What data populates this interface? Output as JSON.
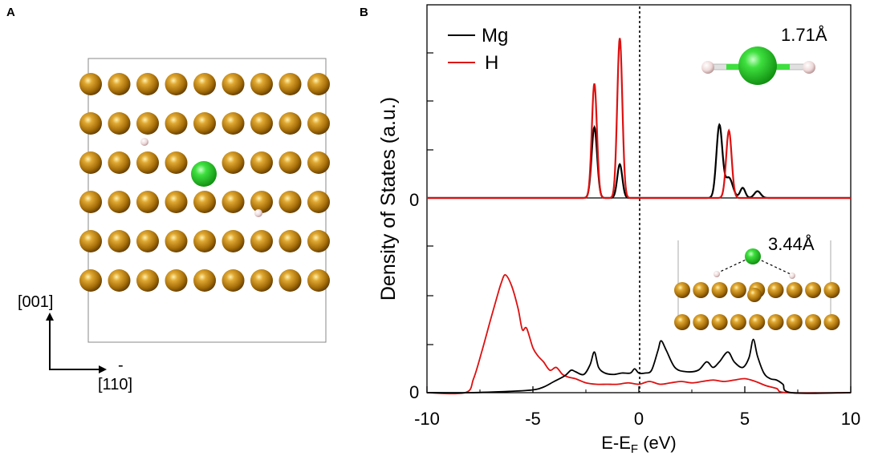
{
  "panels": {
    "a_label": "A",
    "b_label": "B"
  },
  "panel_a": {
    "axis_vertical": "[001]",
    "axis_horizontal": "[110]",
    "axis_horizontal_overbar": "-",
    "lattice": {
      "rows": 6,
      "cols": 9,
      "atom_color": "#b07b10",
      "center_atom_color": "#22cc22",
      "h_atom_color": "#f0d8d8"
    }
  },
  "chart_data": {
    "type": "line",
    "xlabel": "E-E",
    "xlabel_sub": "F",
    "xlabel_unit": " (eV)",
    "ylabel": "Density of States (a.u.)",
    "xlim": [
      -10,
      10
    ],
    "xticks": [
      "-10",
      "-5",
      "0",
      "5",
      "10"
    ],
    "fermi_level": 0,
    "legend": [
      {
        "name": "Mg",
        "color": "#000000"
      },
      {
        "name": "H",
        "color": "#dd1111"
      }
    ],
    "top_panel": {
      "zero_label": "0",
      "annotation": "1.71Å",
      "series": [
        {
          "name": "Mg",
          "color": "#000000",
          "ylim": [
            0,
            100
          ],
          "peaks": [
            {
              "center": -2.1,
              "height": 42,
              "width": 0.13
            },
            {
              "center": -0.9,
              "height": 20,
              "width": 0.12
            },
            {
              "center": 3.8,
              "height": 43,
              "width": 0.14
            },
            {
              "center": 4.25,
              "height": 12,
              "width": 0.18
            },
            {
              "center": 4.9,
              "height": 6,
              "width": 0.12
            },
            {
              "center": 5.6,
              "height": 4,
              "width": 0.15
            }
          ]
        },
        {
          "name": "H",
          "color": "#dd1111",
          "ylim": [
            0,
            100
          ],
          "peaks": [
            {
              "center": -2.1,
              "height": 68,
              "width": 0.12
            },
            {
              "center": -0.9,
              "height": 95,
              "width": 0.12
            },
            {
              "center": 4.25,
              "height": 40,
              "width": 0.13
            }
          ]
        }
      ]
    },
    "bottom_panel": {
      "zero_label": "0",
      "annotation": "3.44Å",
      "ylim": [
        0,
        100
      ],
      "series": [
        {
          "name": "Mg",
          "color": "#000000",
          "x": [
            -10,
            -8,
            -6,
            -5,
            -4.5,
            -4,
            -3.5,
            -3.2,
            -3.0,
            -2.6,
            -2.3,
            -2.1,
            -1.9,
            -1.6,
            -1.2,
            -0.8,
            -0.4,
            -0.2,
            0,
            0.3,
            0.6,
            0.9,
            1.05,
            1.3,
            1.7,
            2.2,
            2.8,
            3.2,
            3.5,
            3.8,
            4.2,
            4.5,
            4.9,
            5.2,
            5.4,
            5.6,
            5.9,
            6.2,
            6.5,
            6.8,
            7.2,
            10
          ],
          "y": [
            0,
            0,
            1,
            2,
            4,
            8,
            12,
            16,
            15,
            13,
            20,
            29,
            18,
            14,
            13,
            14,
            14,
            17,
            14,
            14,
            16,
            30,
            37,
            30,
            18,
            15,
            16,
            22,
            18,
            22,
            29,
            22,
            18,
            25,
            38,
            26,
            14,
            10,
            9,
            6,
            0,
            0
          ]
        },
        {
          "name": "H",
          "color": "#dd1111",
          "x": [
            -10,
            -8.2,
            -7.8,
            -7.4,
            -7.0,
            -6.7,
            -6.5,
            -6.3,
            -6.0,
            -5.7,
            -5.5,
            -5.3,
            -5.0,
            -4.75,
            -4.5,
            -4.2,
            -3.9,
            -3.6,
            -3.3,
            -3.0,
            -2.5,
            -2.0,
            -1.5,
            -1.0,
            -0.5,
            0,
            0.5,
            1.0,
            1.5,
            2.0,
            2.5,
            3.0,
            3.5,
            4.0,
            4.5,
            5.0,
            5.5,
            6.0,
            6.5,
            7.0,
            10
          ],
          "y": [
            0,
            0,
            10,
            30,
            52,
            68,
            78,
            84,
            76,
            60,
            45,
            46,
            32,
            26,
            22,
            16,
            18,
            13,
            11,
            10,
            7,
            6,
            6,
            6,
            7,
            6,
            8,
            6,
            7,
            8,
            7,
            8,
            9,
            8,
            9,
            10,
            8,
            5,
            3,
            0,
            0
          ]
        }
      ]
    }
  }
}
